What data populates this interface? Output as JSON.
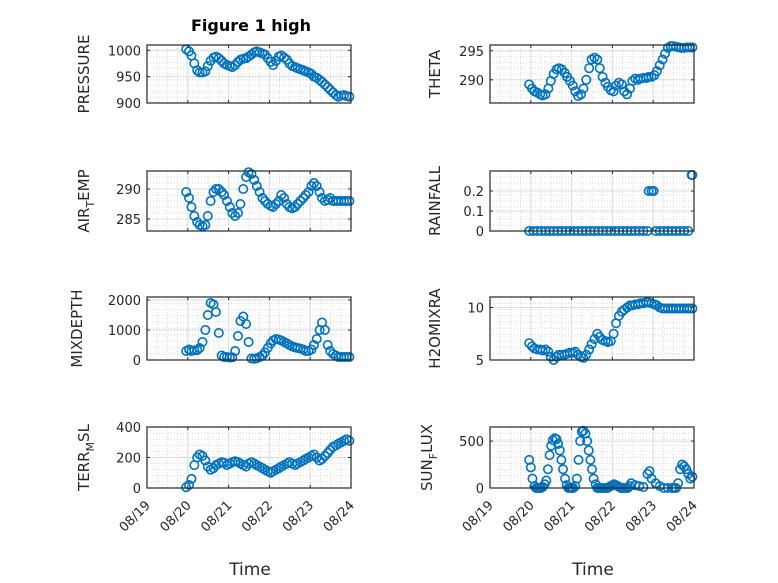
{
  "figure": {
    "title": "Figure 1 high",
    "marker_color": "#0072BD",
    "marker": "circle-open",
    "grid": "on (major + minor dotted)",
    "box": "on"
  },
  "chart_data": [
    {
      "id": "pressure",
      "type": "scatter",
      "xlabel": "",
      "ylabel": "PRESSURE",
      "ylim": [
        900,
        1010
      ],
      "yticks": [
        900,
        950,
        1000
      ],
      "ytick_labels": [
        "900",
        "950",
        "1000"
      ],
      "xlim": [
        0,
        5
      ],
      "xtick_labels_shown": false,
      "x": [
        0.0,
        0.07,
        0.13,
        0.2,
        0.27,
        0.33,
        0.4,
        0.47,
        0.53,
        0.6,
        0.67,
        0.73,
        0.8,
        0.87,
        0.93,
        1.0,
        1.07,
        1.13,
        1.2,
        1.27,
        1.33,
        1.4,
        1.47,
        1.53,
        1.6,
        1.67,
        1.73,
        1.8,
        1.87,
        1.93,
        2.0,
        2.07,
        2.13,
        2.2,
        2.27,
        2.33,
        2.4,
        2.47,
        2.53,
        2.6,
        2.67,
        2.73,
        2.8,
        2.87,
        2.93,
        3.0,
        3.07,
        3.13,
        3.2,
        3.27,
        3.33,
        3.4,
        3.47,
        3.53,
        3.6,
        3.67,
        3.73,
        3.8,
        3.87,
        3.93,
        4.0
      ],
      "y": [
        1002,
        998,
        990,
        975,
        962,
        958,
        958,
        960,
        970,
        980,
        986,
        988,
        985,
        980,
        975,
        972,
        970,
        968,
        972,
        978,
        982,
        984,
        985,
        988,
        992,
        996,
        998,
        996,
        994,
        992,
        985,
        978,
        972,
        980,
        988,
        990,
        986,
        982,
        975,
        970,
        968,
        966,
        964,
        962,
        960,
        958,
        955,
        950,
        948,
        944,
        940,
        935,
        930,
        925,
        920,
        915,
        912,
        914,
        915,
        913,
        912
      ],
      "x_offset_days": 0.96
    },
    {
      "id": "theta",
      "type": "scatter",
      "xlabel": "",
      "ylabel": "THETA",
      "ylim": [
        286,
        296
      ],
      "yticks": [
        290,
        295
      ],
      "ytick_labels": [
        "290",
        "295"
      ],
      "xlim": [
        0,
        5
      ],
      "xtick_labels_shown": false,
      "x": [
        0.0,
        0.07,
        0.13,
        0.2,
        0.27,
        0.33,
        0.4,
        0.47,
        0.53,
        0.6,
        0.67,
        0.73,
        0.8,
        0.87,
        0.93,
        1.0,
        1.07,
        1.13,
        1.2,
        1.27,
        1.33,
        1.4,
        1.47,
        1.53,
        1.6,
        1.67,
        1.73,
        1.8,
        1.87,
        1.93,
        2.0,
        2.07,
        2.13,
        2.2,
        2.27,
        2.33,
        2.4,
        2.47,
        2.53,
        2.6,
        2.67,
        2.73,
        2.8,
        2.87,
        2.93,
        3.0,
        3.07,
        3.13,
        3.2,
        3.27,
        3.33,
        3.4,
        3.47,
        3.53,
        3.6,
        3.67,
        3.73,
        3.8,
        3.87,
        3.93,
        4.0
      ],
      "y": [
        289.2,
        288.5,
        288.0,
        287.8,
        287.5,
        287.3,
        287.5,
        288.5,
        289.8,
        291.0,
        291.8,
        292.0,
        291.8,
        291.2,
        290.5,
        289.8,
        289.0,
        288.0,
        287.2,
        287.5,
        288.5,
        290.0,
        292.0,
        293.5,
        293.8,
        293.5,
        292.0,
        290.5,
        289.5,
        288.8,
        288.2,
        288.0,
        289.0,
        289.5,
        289.2,
        288.0,
        287.5,
        288.5,
        289.8,
        290.2,
        290.0,
        290.2,
        290.3,
        290.3,
        290.5,
        290.5,
        290.8,
        291.5,
        292.5,
        293.5,
        294.5,
        295.5,
        295.8,
        295.8,
        295.7,
        295.6,
        295.5,
        295.5,
        295.6,
        295.6,
        295.6
      ],
      "x_offset_days": 0.96
    },
    {
      "id": "air_temp",
      "type": "scatter",
      "xlabel": "",
      "ylabel": "AIR_TEMP",
      "ylabel_parts": [
        "AIR",
        "T",
        "EMP"
      ],
      "ylim": [
        283,
        293
      ],
      "yticks": [
        285,
        290
      ],
      "ytick_labels": [
        "285",
        "290"
      ],
      "xlim": [
        0,
        5
      ],
      "xtick_labels_shown": false,
      "x": [
        0.0,
        0.07,
        0.13,
        0.2,
        0.27,
        0.33,
        0.4,
        0.47,
        0.53,
        0.6,
        0.67,
        0.73,
        0.8,
        0.87,
        0.93,
        1.0,
        1.07,
        1.13,
        1.2,
        1.27,
        1.33,
        1.4,
        1.47,
        1.53,
        1.6,
        1.67,
        1.73,
        1.8,
        1.87,
        1.93,
        2.0,
        2.07,
        2.13,
        2.2,
        2.27,
        2.33,
        2.4,
        2.47,
        2.53,
        2.6,
        2.67,
        2.73,
        2.8,
        2.87,
        2.93,
        3.0,
        3.07,
        3.13,
        3.2,
        3.27,
        3.33,
        3.4,
        3.47,
        3.53,
        3.6,
        3.67,
        3.73,
        3.8,
        3.87,
        3.93,
        4.0
      ],
      "y": [
        289.5,
        288.5,
        287.0,
        285.5,
        284.5,
        284.0,
        283.8,
        284.0,
        285.5,
        288.0,
        289.5,
        290.0,
        290.0,
        289.5,
        289.0,
        288.0,
        287.0,
        286.0,
        285.5,
        286.0,
        287.5,
        290.0,
        292.0,
        292.8,
        292.5,
        291.5,
        290.5,
        289.5,
        288.5,
        288.0,
        287.5,
        287.2,
        287.0,
        287.5,
        288.0,
        289.0,
        288.5,
        287.5,
        287.0,
        286.8,
        287.0,
        287.5,
        288.0,
        288.5,
        289.0,
        289.5,
        290.5,
        291.0,
        290.5,
        289.5,
        288.5,
        288.0,
        288.2,
        288.5,
        288.0,
        288.0,
        288.0,
        288.0,
        288.0,
        288.0,
        288.0
      ],
      "x_offset_days": 0.96
    },
    {
      "id": "rainfall",
      "type": "scatter",
      "xlabel": "",
      "ylabel": "RAINFALL",
      "ylim": [
        0,
        0.3
      ],
      "yticks": [
        0,
        0.1,
        0.2
      ],
      "ytick_labels": [
        "0",
        "0.1",
        "0.2"
      ],
      "xlim": [
        0,
        5
      ],
      "xtick_labels_shown": false,
      "x": [
        0.0,
        0.1,
        0.2,
        0.3,
        0.4,
        0.5,
        0.6,
        0.7,
        0.8,
        0.9,
        1.0,
        1.1,
        1.2,
        1.3,
        1.4,
        1.5,
        1.6,
        1.7,
        1.8,
        1.9,
        2.0,
        2.1,
        2.2,
        2.3,
        2.4,
        2.5,
        2.6,
        2.7,
        2.8,
        2.9,
        2.93,
        3.0,
        3.05,
        3.1,
        3.2,
        3.3,
        3.4,
        3.5,
        3.6,
        3.7,
        3.8,
        3.9,
        3.98,
        4.0
      ],
      "y": [
        0,
        0,
        0,
        0,
        0,
        0,
        0,
        0,
        0,
        0,
        0,
        0,
        0,
        0,
        0,
        0,
        0,
        0,
        0,
        0,
        0,
        0,
        0,
        0,
        0,
        0,
        0,
        0,
        0,
        0,
        0.2,
        0.2,
        0.2,
        0,
        0,
        0,
        0,
        0,
        0,
        0,
        0,
        0,
        0.28,
        0.28
      ],
      "x_offset_days": 0.96
    },
    {
      "id": "mixdepth",
      "type": "scatter",
      "xlabel": "",
      "ylabel": "MIXDEPTH",
      "ylim": [
        0,
        2100
      ],
      "yticks": [
        0,
        1000,
        2000
      ],
      "ytick_labels": [
        "0",
        "1000",
        "2000"
      ],
      "xlim": [
        0,
        5
      ],
      "xtick_labels_shown": false,
      "x": [
        0.0,
        0.07,
        0.13,
        0.2,
        0.27,
        0.33,
        0.4,
        0.47,
        0.53,
        0.6,
        0.67,
        0.73,
        0.8,
        0.87,
        0.93,
        1.0,
        1.07,
        1.13,
        1.2,
        1.27,
        1.33,
        1.4,
        1.47,
        1.53,
        1.6,
        1.67,
        1.73,
        1.8,
        1.87,
        1.93,
        2.0,
        2.07,
        2.13,
        2.2,
        2.27,
        2.33,
        2.4,
        2.47,
        2.53,
        2.6,
        2.67,
        2.73,
        2.8,
        2.87,
        2.93,
        3.0,
        3.07,
        3.13,
        3.2,
        3.27,
        3.33,
        3.4,
        3.47,
        3.53,
        3.6,
        3.67,
        3.73,
        3.8,
        3.87,
        3.93,
        4.0
      ],
      "y": [
        300,
        350,
        300,
        320,
        330,
        400,
        600,
        1000,
        1500,
        1900,
        1850,
        1600,
        900,
        150,
        100,
        100,
        80,
        90,
        300,
        800,
        1300,
        1450,
        1200,
        600,
        50,
        40,
        60,
        100,
        150,
        250,
        400,
        550,
        650,
        700,
        680,
        650,
        600,
        550,
        500,
        450,
        420,
        400,
        380,
        350,
        300,
        300,
        350,
        500,
        700,
        1000,
        1250,
        1000,
        500,
        300,
        200,
        150,
        100,
        100,
        100,
        100,
        100
      ],
      "x_offset_days": 0.96
    },
    {
      "id": "h2omixra",
      "type": "scatter",
      "xlabel": "",
      "ylabel": "H2OMIXRA",
      "ylim": [
        5,
        11
      ],
      "yticks": [
        5,
        10
      ],
      "ytick_labels": [
        "5",
        "10"
      ],
      "xlim": [
        0,
        5
      ],
      "xtick_labels_shown": false,
      "x": [
        0.0,
        0.07,
        0.13,
        0.2,
        0.27,
        0.33,
        0.4,
        0.47,
        0.53,
        0.6,
        0.67,
        0.73,
        0.8,
        0.87,
        0.93,
        1.0,
        1.07,
        1.13,
        1.2,
        1.27,
        1.33,
        1.4,
        1.47,
        1.53,
        1.6,
        1.67,
        1.73,
        1.8,
        1.87,
        1.93,
        2.0,
        2.07,
        2.13,
        2.2,
        2.27,
        2.33,
        2.4,
        2.47,
        2.53,
        2.6,
        2.67,
        2.73,
        2.8,
        2.87,
        2.93,
        3.0,
        3.07,
        3.13,
        3.2,
        3.27,
        3.33,
        3.4,
        3.47,
        3.53,
        3.6,
        3.67,
        3.73,
        3.8,
        3.87,
        3.93,
        4.0
      ],
      "y": [
        6.6,
        6.3,
        6.1,
        6.0,
        6.0,
        5.9,
        6.0,
        5.8,
        5.3,
        5.0,
        5.3,
        5.5,
        5.5,
        5.5,
        5.6,
        5.7,
        5.7,
        5.8,
        5.5,
        5.3,
        5.2,
        5.5,
        6.0,
        6.5,
        7.0,
        7.5,
        7.2,
        6.9,
        6.8,
        6.7,
        6.8,
        7.5,
        8.5,
        9.2,
        9.6,
        9.8,
        10.0,
        10.2,
        10.2,
        10.3,
        10.3,
        10.4,
        10.4,
        10.5,
        10.5,
        10.4,
        10.3,
        10.2,
        10.0,
        9.9,
        9.9,
        9.9,
        9.9,
        9.9,
        9.9,
        9.9,
        9.9,
        9.9,
        9.9,
        9.9,
        9.9
      ],
      "x_offset_days": 0.96
    },
    {
      "id": "terr_msl",
      "type": "scatter",
      "xlabel": "Time",
      "ylabel": "TERR_MSL",
      "ylabel_parts": [
        "TERR",
        "M",
        "SL"
      ],
      "ylim": [
        0,
        400
      ],
      "yticks": [
        0,
        200,
        400
      ],
      "ytick_labels": [
        "0",
        "200",
        "400"
      ],
      "xlim": [
        0,
        5
      ],
      "xticks": [
        0,
        1,
        2,
        3,
        4,
        5
      ],
      "xtick_labels": [
        "08/19",
        "08/20",
        "08/21",
        "08/22",
        "08/23",
        "08/24"
      ],
      "x": [
        0.0,
        0.07,
        0.13,
        0.2,
        0.27,
        0.33,
        0.4,
        0.47,
        0.53,
        0.6,
        0.67,
        0.73,
        0.8,
        0.87,
        0.93,
        1.0,
        1.07,
        1.13,
        1.2,
        1.27,
        1.33,
        1.4,
        1.47,
        1.53,
        1.6,
        1.67,
        1.73,
        1.8,
        1.87,
        1.93,
        2.0,
        2.07,
        2.13,
        2.2,
        2.27,
        2.33,
        2.4,
        2.47,
        2.53,
        2.6,
        2.67,
        2.73,
        2.8,
        2.87,
        2.93,
        3.0,
        3.07,
        3.13,
        3.2,
        3.27,
        3.33,
        3.4,
        3.47,
        3.53,
        3.6,
        3.67,
        3.73,
        3.8,
        3.87,
        3.93,
        4.0
      ],
      "y": [
        5,
        20,
        60,
        150,
        200,
        220,
        210,
        180,
        140,
        120,
        130,
        150,
        160,
        170,
        165,
        150,
        160,
        170,
        175,
        170,
        160,
        150,
        140,
        160,
        170,
        160,
        150,
        140,
        130,
        120,
        110,
        100,
        110,
        120,
        130,
        140,
        150,
        160,
        170,
        160,
        150,
        160,
        170,
        180,
        190,
        200,
        210,
        220,
        200,
        180,
        190,
        210,
        230,
        250,
        270,
        280,
        290,
        300,
        310,
        320,
        310
      ],
      "x_offset_days": 0.96
    },
    {
      "id": "sun_flux",
      "type": "scatter",
      "xlabel": "Time",
      "ylabel": "SUN_FLUX",
      "ylabel_parts": [
        "SUN",
        "F",
        "LUX"
      ],
      "ylim": [
        0,
        650
      ],
      "yticks": [
        0,
        500
      ],
      "ytick_labels": [
        "0",
        "500"
      ],
      "xlim": [
        0,
        5
      ],
      "xticks": [
        0,
        1,
        2,
        3,
        4,
        5
      ],
      "xtick_labels": [
        "08/19",
        "08/20",
        "08/21",
        "08/22",
        "08/23",
        "08/24"
      ],
      "x": [
        0.0,
        0.04,
        0.08,
        0.13,
        0.17,
        0.21,
        0.25,
        0.29,
        0.33,
        0.38,
        0.42,
        0.46,
        0.5,
        0.54,
        0.58,
        0.63,
        0.67,
        0.71,
        0.75,
        0.79,
        0.83,
        0.88,
        0.92,
        0.96,
        1.0,
        1.04,
        1.08,
        1.13,
        1.17,
        1.21,
        1.25,
        1.29,
        1.33,
        1.38,
        1.42,
        1.46,
        1.5,
        1.54,
        1.58,
        1.63,
        1.67,
        1.71,
        1.75,
        1.79,
        1.83,
        1.88,
        1.92,
        1.96,
        2.0,
        2.04,
        2.08,
        2.13,
        2.17,
        2.21,
        2.25,
        2.29,
        2.33,
        2.38,
        2.42,
        2.46,
        2.5,
        2.6,
        2.7,
        2.8,
        2.9,
        2.95,
        3.0,
        3.1,
        3.2,
        3.3,
        3.4,
        3.5,
        3.55,
        3.6,
        3.65,
        3.7,
        3.75,
        3.8,
        3.85,
        3.9,
        3.95,
        4.0
      ],
      "y": [
        300,
        220,
        100,
        20,
        0,
        0,
        0,
        0,
        10,
        40,
        80,
        200,
        350,
        450,
        510,
        530,
        520,
        470,
        400,
        300,
        200,
        100,
        30,
        0,
        0,
        0,
        0,
        20,
        100,
        300,
        500,
        600,
        610,
        580,
        500,
        400,
        300,
        200,
        100,
        40,
        0,
        0,
        0,
        0,
        0,
        0,
        0,
        10,
        20,
        30,
        40,
        30,
        20,
        10,
        0,
        0,
        0,
        0,
        0,
        20,
        50,
        30,
        20,
        10,
        150,
        180,
        100,
        50,
        20,
        0,
        0,
        0,
        0,
        0,
        50,
        200,
        250,
        230,
        200,
        150,
        100,
        120
      ],
      "x_offset_days": 0.96
    }
  ]
}
